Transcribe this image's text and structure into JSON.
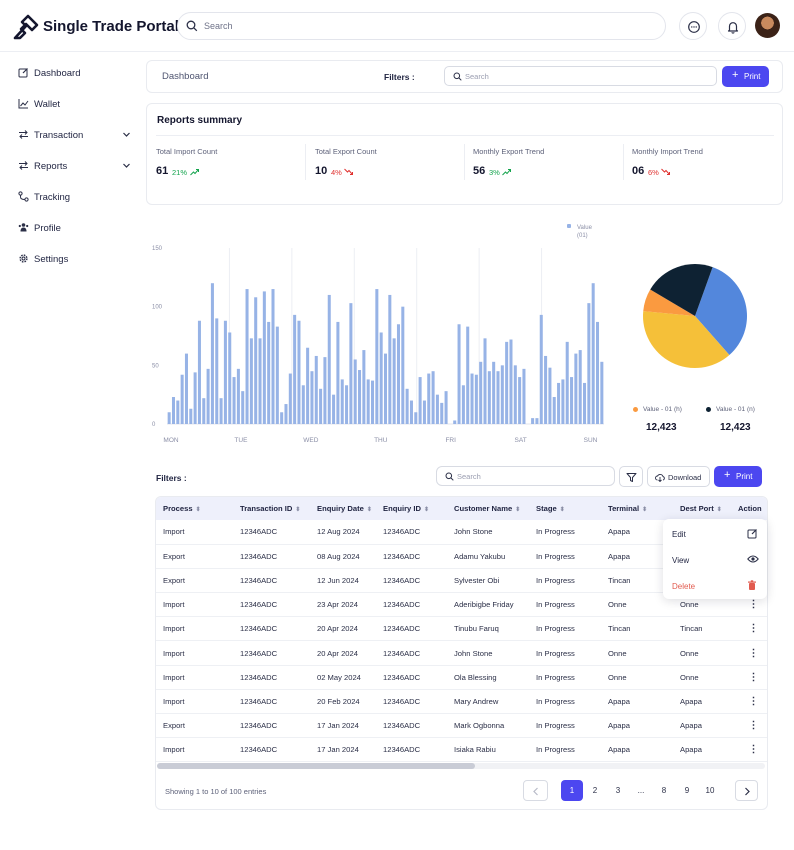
{
  "app": {
    "title": "Single Trade Portal"
  },
  "header": {
    "search_placeholder": "Search"
  },
  "sidebar": {
    "items": [
      {
        "label": "Dashboard",
        "icon": "edit-icon"
      },
      {
        "label": "Wallet",
        "icon": "trend-chart-icon"
      },
      {
        "label": "Transaction",
        "icon": "swap-icon",
        "expandable": true
      },
      {
        "label": "Reports",
        "icon": "swap-icon",
        "expandable": true
      },
      {
        "label": "Tracking",
        "icon": "route-icon"
      },
      {
        "label": "Profile",
        "icon": "users-icon"
      },
      {
        "label": "Settings",
        "icon": "gear-icon"
      }
    ]
  },
  "toolbar": {
    "breadcrumb": "Dashboard",
    "filters_label": "Filters :",
    "search_placeholder": "Search",
    "print_label": "Print"
  },
  "summary": {
    "title": "Reports summary",
    "stats": [
      {
        "label": "Total Import Count",
        "value": "61",
        "change": "21%",
        "trend": "up"
      },
      {
        "label": "Total Export Count",
        "value": "10",
        "change": "4%",
        "trend": "down"
      },
      {
        "label": "Monthly Export Trend",
        "value": "56",
        "change": "3%",
        "trend": "up"
      },
      {
        "label": "Monthly Import Trend",
        "value": "06",
        "change": "6%",
        "trend": "down"
      }
    ]
  },
  "chart_data": [
    {
      "type": "bar",
      "legend": {
        "label_line1": "Value",
        "label_line2": "(01)",
        "position": "top-right"
      },
      "ylim": [
        0,
        150
      ],
      "yticks": [
        "0",
        "50",
        "100",
        "150"
      ],
      "xticks": [
        "MON",
        "TUE",
        "WED",
        "THU",
        "FRI",
        "SAT",
        "SUN"
      ],
      "color": "#97b3e6",
      "values": [
        10,
        23,
        20,
        42,
        60,
        13,
        44,
        88,
        22,
        47,
        120,
        90,
        22,
        88,
        78,
        40,
        47,
        28,
        115,
        73,
        108,
        73,
        113,
        87,
        115,
        83,
        10,
        17,
        43,
        93,
        88,
        33,
        65,
        45,
        58,
        30,
        57,
        110,
        25,
        87,
        38,
        33,
        103,
        55,
        46,
        63,
        38,
        37,
        115,
        78,
        60,
        110,
        73,
        85,
        100,
        30,
        20,
        10,
        40,
        20,
        43,
        45,
        25,
        18,
        28,
        0,
        3,
        85,
        33,
        83,
        43,
        42,
        53,
        73,
        45,
        53,
        45,
        50,
        70,
        72,
        50,
        40,
        47,
        0,
        5,
        5,
        93,
        58,
        48,
        23,
        35,
        38,
        70,
        40,
        60,
        63,
        35,
        103,
        120,
        87,
        53
      ]
    },
    {
      "type": "pie",
      "slices": [
        {
          "label": "",
          "value": 33,
          "color": "#5387dc"
        },
        {
          "label": "",
          "value": 38,
          "color": "#f5c039"
        },
        {
          "label": "",
          "value": 7,
          "color": "#fa9a40"
        },
        {
          "label": "",
          "value": 22,
          "color": "#0e2233"
        }
      ],
      "legend": [
        {
          "label": "Value - 01 (h)",
          "value": "12,423",
          "color": "#fa9a40"
        },
        {
          "label": "Value - 01 (n)",
          "value": "12,423",
          "color": "#0e2233"
        }
      ]
    }
  ],
  "table_section": {
    "filters_label": "Filters :",
    "search_placeholder": "Search",
    "download_label": "Download",
    "print_label": "Print",
    "columns": [
      "Process",
      "Transaction ID",
      "Enquiry Date",
      "Enquiry ID",
      "Customer Name",
      "Stage",
      "Terminal",
      "Dest Port",
      "Action"
    ],
    "rows": [
      {
        "process": "Import",
        "txn_id": "12346ADC",
        "date": "12 Aug 2024",
        "enq_id": "12346ADC",
        "customer": "John Stone",
        "stage": "In Progress",
        "terminal": "Apapa",
        "dest_port": ""
      },
      {
        "process": "Export",
        "txn_id": "12346ADC",
        "date": "08 Aug 2024",
        "enq_id": "12346ADC",
        "customer": "Adamu Yakubu",
        "stage": "In Progress",
        "terminal": "Apapa",
        "dest_port": ""
      },
      {
        "process": "Export",
        "txn_id": "12346ADC",
        "date": "12 Jun 2024",
        "enq_id": "12346ADC",
        "customer": "Sylvester Obi",
        "stage": "In Progress",
        "terminal": "Tincan",
        "dest_port": ""
      },
      {
        "process": "Import",
        "txn_id": "12346ADC",
        "date": "23 Apr 2024",
        "enq_id": "12346ADC",
        "customer": "Aderibigbe Friday",
        "stage": "In Progress",
        "terminal": "Onne",
        "dest_port": "Onne"
      },
      {
        "process": "Import",
        "txn_id": "12346ADC",
        "date": "20 Apr 2024",
        "enq_id": "12346ADC",
        "customer": "Tinubu Faruq",
        "stage": "In Progress",
        "terminal": "Tincan",
        "dest_port": "Tincan"
      },
      {
        "process": "Import",
        "txn_id": "12346ADC",
        "date": "20 Apr 2024",
        "enq_id": "12346ADC",
        "customer": "John Stone",
        "stage": "In Progress",
        "terminal": "Onne",
        "dest_port": "Onne"
      },
      {
        "process": "Import",
        "txn_id": "12346ADC",
        "date": "02 May 2024",
        "enq_id": "12346ADC",
        "customer": "Ola Blessing",
        "stage": "In Progress",
        "terminal": "Onne",
        "dest_port": "Onne"
      },
      {
        "process": "Import",
        "txn_id": "12346ADC",
        "date": "20 Feb 2024",
        "enq_id": "12346ADC",
        "customer": "Mary Andrew",
        "stage": "In Progress",
        "terminal": "Apapa",
        "dest_port": "Apapa"
      },
      {
        "process": "Export",
        "txn_id": "12346ADC",
        "date": "17 Jan 2024",
        "enq_id": "12346ADC",
        "customer": "Mark Ogbonna",
        "stage": "In Progress",
        "terminal": "Apapa",
        "dest_port": "Apapa"
      },
      {
        "process": "Import",
        "txn_id": "12346ADC",
        "date": "17 Jan 2024",
        "enq_id": "12346ADC",
        "customer": "Isiaka Rabiu",
        "stage": "In Progress",
        "terminal": "Apapa",
        "dest_port": "Apapa"
      }
    ],
    "action_menu": {
      "edit": "Edit",
      "view": "View",
      "delete": "Delete"
    },
    "showing_text": "Showing 1 to 10 of 100 entries",
    "pagination": [
      "1",
      "2",
      "3",
      "...",
      "8",
      "9",
      "10"
    ],
    "current_page": "1"
  },
  "colors": {
    "accent": "#4c47f0",
    "up": "#14a44d",
    "down": "#e0312f",
    "delete": "#e25b4f"
  }
}
